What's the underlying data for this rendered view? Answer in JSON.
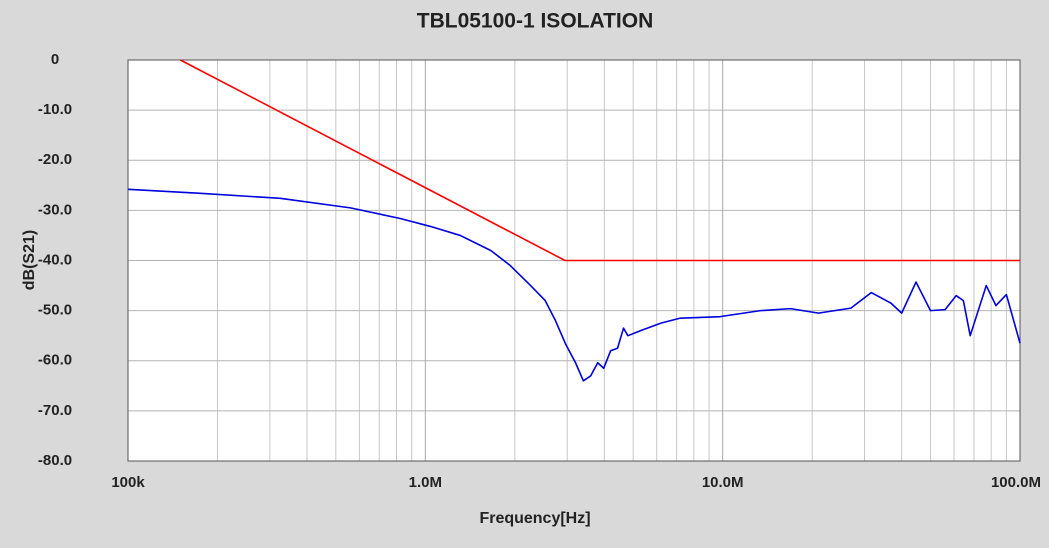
{
  "chart_data": {
    "type": "line",
    "title": "TBL05100-1 ISOLATION",
    "x_label": "Frequency[Hz]",
    "y_label": "dB(S21)",
    "log_x": true,
    "grid": true,
    "xlim": [
      100000,
      100000000
    ],
    "xticks": [
      {
        "value": 100000,
        "label": "100k"
      },
      {
        "value": 1000000,
        "label": "1.0M"
      },
      {
        "value": 10000000,
        "label": "10.0M"
      },
      {
        "value": 100000000,
        "label": "100.0M"
      }
    ],
    "xminorticks": [
      200000,
      300000,
      400000,
      500000,
      600000,
      700000,
      800000,
      900000,
      2000000,
      3000000,
      4000000,
      5000000,
      6000000,
      7000000,
      8000000,
      9000000,
      20000000,
      30000000,
      40000000,
      50000000,
      60000000,
      70000000,
      80000000,
      90000000
    ],
    "ylim": [
      -80,
      0
    ],
    "yticks": [
      0,
      {
        "value": -10,
        "label": "-10.0"
      },
      {
        "value": -20,
        "label": "-20.0"
      },
      {
        "value": -30,
        "label": "-30.0"
      },
      {
        "value": -40,
        "label": "-40.0"
      },
      {
        "value": -50,
        "label": "-50.0"
      },
      {
        "value": -60,
        "label": "-60.0"
      },
      {
        "value": -70,
        "label": "-70.0"
      },
      {
        "value": -80,
        "label": "-80.0"
      }
    ],
    "series": [
      {
        "color": "#ff0000",
        "x": [
          150000,
          2950000,
          100000000
        ],
        "values": [
          0,
          -40,
          -40
        ]
      },
      {
        "color": "#0000dd",
        "x": [
          100000,
          175000,
          325000,
          560000,
          820000,
          1040000,
          1310000,
          1660000,
          1930000,
          2260000,
          2530000,
          2740000,
          2960000,
          3200000,
          3400000,
          3600000,
          3800000,
          3980000,
          4200000,
          4430000,
          4640000,
          4800000,
          5300000,
          6200000,
          7200000,
          9800000,
          13400000,
          16900000,
          21000000,
          27000000,
          31600000,
          36800000,
          40000000,
          44700000,
          50000000,
          56000000,
          61000000,
          64500000,
          68000000,
          77000000,
          83000000,
          90000000,
          100000000
        ],
        "values": [
          -25.8,
          -26.6,
          -27.6,
          -29.5,
          -31.6,
          -33.2,
          -35,
          -38,
          -41,
          -45,
          -48,
          -52,
          -56.6,
          -60.4,
          -64,
          -63,
          -60.4,
          -61.5,
          -58,
          -57.5,
          -53.5,
          -55,
          -54,
          -52.5,
          -51.5,
          -51.2,
          -50,
          -49.6,
          -50.5,
          -49.5,
          -46.4,
          -48.5,
          -50.5,
          -44.3,
          -50,
          -49.8,
          -47,
          -48,
          -55,
          -45,
          -49,
          -46.8,
          -56.5
        ]
      }
    ]
  }
}
